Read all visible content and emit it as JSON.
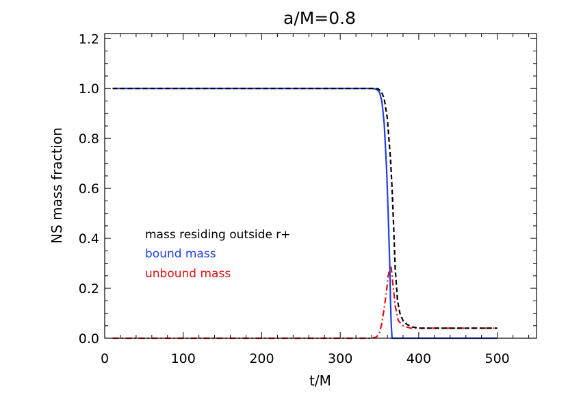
{
  "chart_data": {
    "type": "line",
    "title": "a/M=0.8",
    "xlabel": "t/M",
    "ylabel": "NS mass fraction",
    "xlim": [
      0,
      550
    ],
    "ylim": [
      0,
      1.22
    ],
    "xticks": [
      0,
      100,
      200,
      300,
      400,
      500
    ],
    "xtick_labels": [
      "0",
      "100",
      "200",
      "300",
      "400",
      "500"
    ],
    "yticks": [
      0.0,
      0.2,
      0.4,
      0.6,
      0.8,
      1.0,
      1.2
    ],
    "ytick_labels": [
      "0.0",
      "0.2",
      "0.4",
      "0.6",
      "0.8",
      "1.0",
      "1.2"
    ],
    "grid": false,
    "legend_placement": "center-left",
    "series": [
      {
        "name": "mass residing outside r+",
        "color": "#000000",
        "dash": "dashed",
        "x": [
          10,
          340,
          348,
          352,
          356,
          360,
          364,
          366,
          368,
          370,
          373,
          376,
          380,
          385,
          392,
          400,
          420,
          450,
          500
        ],
        "y": [
          1.0,
          1.0,
          0.999,
          0.99,
          0.96,
          0.88,
          0.72,
          0.6,
          0.45,
          0.28,
          0.15,
          0.1,
          0.07,
          0.055,
          0.045,
          0.04,
          0.04,
          0.04,
          0.04
        ]
      },
      {
        "name": "bound mass",
        "color": "#1f3fe0",
        "dash": "solid",
        "x": [
          10,
          340,
          346,
          350,
          353,
          356,
          359,
          361,
          363,
          364,
          365,
          366,
          380,
          420,
          500
        ],
        "y": [
          1.0,
          1.0,
          0.998,
          0.985,
          0.95,
          0.86,
          0.68,
          0.5,
          0.3,
          0.15,
          0.05,
          0.0,
          0.0,
          0.0,
          0.0
        ]
      },
      {
        "name": "unbound mass",
        "color": "#e01010",
        "dash": "dashdot",
        "x": [
          10,
          300,
          340,
          346,
          350,
          353,
          356,
          359,
          361,
          363,
          364,
          365,
          367,
          370,
          374,
          380,
          390,
          400,
          450,
          500
        ],
        "y": [
          0.0,
          0.0,
          0.0,
          0.005,
          0.02,
          0.06,
          0.12,
          0.19,
          0.25,
          0.28,
          0.29,
          0.28,
          0.22,
          0.13,
          0.07,
          0.05,
          0.04,
          0.04,
          0.04,
          0.04
        ]
      }
    ]
  }
}
